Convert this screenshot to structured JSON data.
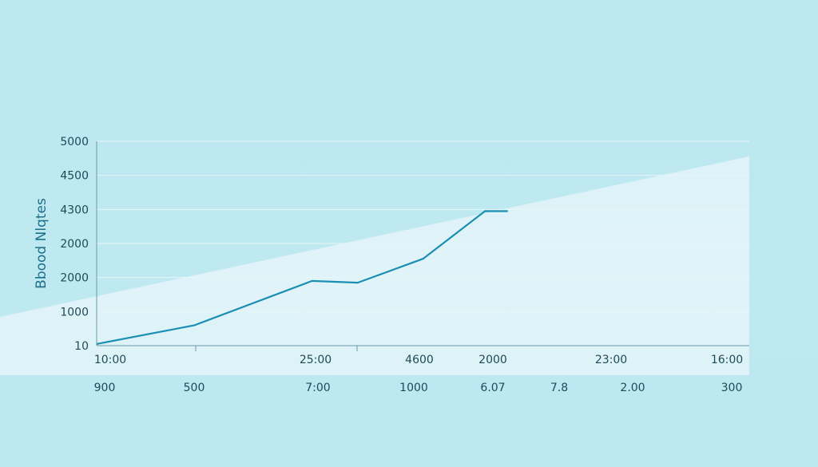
{
  "chart_data": {
    "type": "line",
    "title": "",
    "ylabel": "Bbood Nlqtes",
    "ylim": [
      0,
      6
    ],
    "y_tick_labels": [
      "10",
      "1000",
      "2000",
      "2000",
      "4300",
      "4500",
      "5000"
    ],
    "x_tick_labels_row1": [
      "10:00",
      "25:00",
      "4600",
      "2000",
      "23:00",
      "16:00"
    ],
    "x_tick_labels_row2": [
      "900",
      "500",
      "7:00",
      "1000",
      "6.07",
      "7.8",
      "2.00",
      "300"
    ],
    "x": [
      0,
      1.5,
      3.3,
      4,
      5,
      5.95,
      6.3
    ],
    "series": [
      {
        "values": [
          0.05,
          0.6,
          1.9,
          1.85,
          2.55,
          3.95,
          3.95
        ]
      }
    ],
    "x_range": [
      0,
      10
    ],
    "grid": true,
    "colors": {
      "line": "#1b8fb2",
      "grid": "#e8f6f9",
      "axis": "#4a7f8f",
      "highlight_band": "#e6f6fa"
    }
  }
}
